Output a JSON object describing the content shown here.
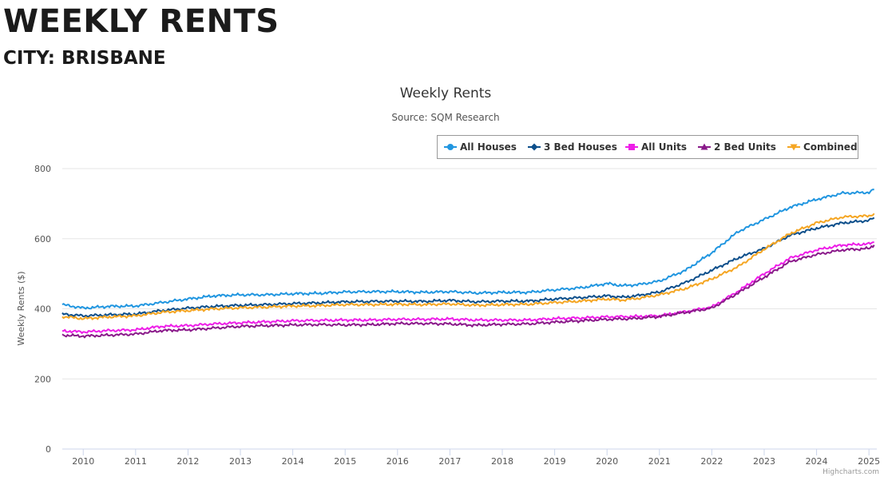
{
  "header": {
    "title": "WEEKLY RENTS",
    "subtitle": "CITY: BRISBANE"
  },
  "credits": "Highcharts.com",
  "chart_data": {
    "type": "line",
    "title": "Weekly Rents",
    "subtitle": "Source: SQM Research",
    "xlabel": "",
    "ylabel": "Weekly Rents ($)",
    "xlim": [
      2009.6,
      2025.15
    ],
    "ylim": [
      0,
      800
    ],
    "y_ticks": [
      0,
      200,
      400,
      600,
      800
    ],
    "x_ticks": [
      "2010",
      "2011",
      "2012",
      "2013",
      "2014",
      "2015",
      "2016",
      "2017",
      "2018",
      "2019",
      "2020",
      "2021",
      "2022",
      "2023",
      "2024",
      "2025"
    ],
    "grid": true,
    "legend_position": "top-right",
    "series": [
      {
        "name": "All Houses",
        "color": "#2196e0",
        "marker": "circle",
        "x": [
          2009.6,
          2010,
          2010.5,
          2011,
          2011.5,
          2012,
          2012.5,
          2013,
          2013.5,
          2014,
          2014.5,
          2015,
          2015.5,
          2016,
          2016.5,
          2017,
          2017.5,
          2018,
          2018.5,
          2019,
          2019.5,
          2020,
          2020.3,
          2020.6,
          2021,
          2021.5,
          2022,
          2022.5,
          2023,
          2023.5,
          2024,
          2024.5,
          2025,
          2025.1
        ],
        "values": [
          412,
          402,
          407,
          408,
          418,
          428,
          437,
          440,
          440,
          443,
          444,
          448,
          449,
          449,
          447,
          449,
          445,
          447,
          447,
          454,
          460,
          472,
          466,
          469,
          479,
          510,
          560,
          620,
          655,
          690,
          712,
          730,
          732,
          740
        ]
      },
      {
        "name": "3 Bed Houses",
        "color": "#0d4f8b",
        "marker": "diamond",
        "x": [
          2009.6,
          2010,
          2010.5,
          2011,
          2011.5,
          2012,
          2012.5,
          2013,
          2013.5,
          2014,
          2014.5,
          2015,
          2015.5,
          2016,
          2016.5,
          2017,
          2017.5,
          2018,
          2018.5,
          2019,
          2019.5,
          2020,
          2020.3,
          2020.6,
          2021,
          2021.5,
          2022,
          2022.5,
          2023,
          2023.5,
          2024,
          2024.5,
          2025,
          2025.1
        ],
        "values": [
          385,
          380,
          383,
          385,
          395,
          402,
          407,
          410,
          412,
          415,
          417,
          420,
          421,
          422,
          421,
          424,
          420,
          422,
          422,
          428,
          432,
          437,
          433,
          438,
          448,
          475,
          510,
          545,
          572,
          610,
          630,
          645,
          652,
          660
        ]
      },
      {
        "name": "All Units",
        "color": "#ee1ee8",
        "marker": "square",
        "x": [
          2009.6,
          2010,
          2010.5,
          2011,
          2011.5,
          2012,
          2012.5,
          2013,
          2013.5,
          2014,
          2014.5,
          2015,
          2015.5,
          2016,
          2016.5,
          2017,
          2017.5,
          2018,
          2018.5,
          2019,
          2019.5,
          2020,
          2020.5,
          2021,
          2021.5,
          2022,
          2022.5,
          2023,
          2023.5,
          2024,
          2024.5,
          2025,
          2025.1
        ],
        "values": [
          337,
          334,
          338,
          340,
          350,
          352,
          357,
          360,
          363,
          366,
          367,
          368,
          368,
          370,
          370,
          371,
          368,
          368,
          368,
          372,
          374,
          377,
          378,
          380,
          392,
          405,
          450,
          500,
          545,
          568,
          582,
          585,
          590
        ]
      },
      {
        "name": "2 Bed Units",
        "color": "#8a1a8a",
        "marker": "triangle",
        "x": [
          2009.6,
          2010,
          2010.5,
          2011,
          2011.5,
          2012,
          2012.5,
          2013,
          2013.5,
          2014,
          2014.5,
          2015,
          2015.5,
          2016,
          2016.5,
          2017,
          2017.5,
          2018,
          2018.5,
          2019,
          2019.5,
          2020,
          2020.5,
          2021,
          2021.5,
          2022,
          2022.5,
          2023,
          2023.5,
          2024,
          2024.5,
          2025,
          2025.1
        ],
        "values": [
          325,
          322,
          325,
          328,
          338,
          340,
          345,
          350,
          352,
          354,
          355,
          354,
          355,
          358,
          358,
          357,
          353,
          356,
          357,
          362,
          366,
          370,
          372,
          378,
          390,
          402,
          445,
          490,
          535,
          555,
          568,
          572,
          582
        ]
      },
      {
        "name": "Combined",
        "color": "#f5a623",
        "marker": "triangle-down",
        "x": [
          2009.6,
          2010,
          2010.5,
          2011,
          2011.5,
          2012,
          2012.5,
          2013,
          2013.5,
          2014,
          2014.5,
          2015,
          2015.5,
          2016,
          2016.5,
          2017,
          2017.5,
          2018,
          2018.5,
          2019,
          2019.5,
          2020,
          2020.3,
          2020.6,
          2021,
          2021.5,
          2022,
          2022.5,
          2023,
          2023.5,
          2024,
          2024.5,
          2025,
          2025.1
        ],
        "values": [
          378,
          372,
          377,
          380,
          390,
          395,
          400,
          403,
          405,
          408,
          409,
          412,
          412,
          413,
          412,
          414,
          410,
          412,
          413,
          418,
          422,
          428,
          425,
          430,
          440,
          458,
          485,
          520,
          570,
          615,
          645,
          662,
          665,
          672
        ]
      }
    ]
  }
}
